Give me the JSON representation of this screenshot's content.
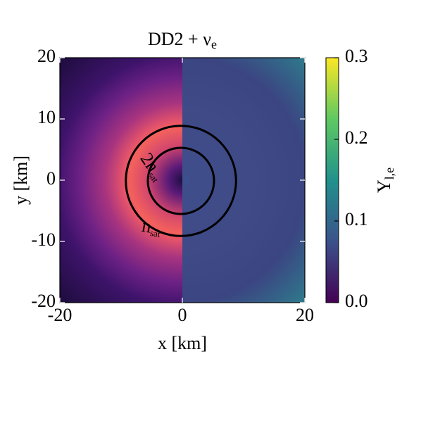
{
  "chart_data": {
    "type": "heatmap",
    "title": {
      "text": "DD2 + ν",
      "sub": "e"
    },
    "x_label": "x [km]",
    "y_label": "y [km]",
    "xlim": [
      -20,
      20
    ],
    "ylim": [
      -20,
      20
    ],
    "xticks": [
      -20,
      0,
      20
    ],
    "yticks": [
      -20,
      -10,
      0,
      10,
      20
    ],
    "colorbar": {
      "label": {
        "text": "Y",
        "sub": "l,e"
      },
      "lim": [
        0,
        0.3
      ],
      "ticks": [
        {
          "value": 0,
          "label": "0.0"
        },
        0.1,
        0.2,
        0.3
      ]
    },
    "contours": [
      {
        "label": {
          "text": "n",
          "sub": "sat"
        },
        "radius": 9
      },
      {
        "label": {
          "text": "2n",
          "sub": "sat"
        },
        "radius": 5.4
      }
    ]
  }
}
